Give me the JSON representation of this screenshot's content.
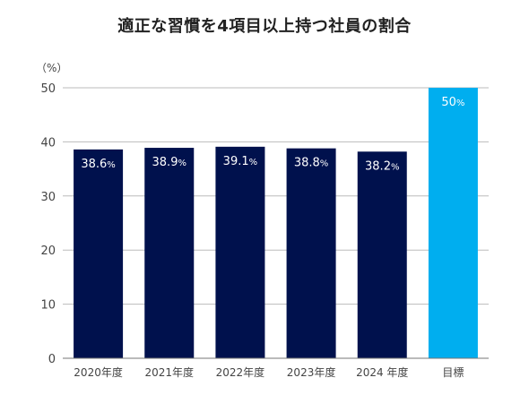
{
  "chart_data": {
    "type": "bar",
    "title": "適正な習慣を4項目以上持つ社員の割合",
    "ylabel": "（%）",
    "categories": [
      "2020年度",
      "2021年度",
      "2022年度",
      "2023年度",
      "2024 年度",
      "目標"
    ],
    "values": [
      38.6,
      38.9,
      39.1,
      38.8,
      38.2,
      50
    ],
    "value_labels": [
      "38.6",
      "38.9",
      "39.1",
      "38.8",
      "38.2",
      "50"
    ],
    "value_unit": "%",
    "ylim": [
      0,
      50
    ],
    "yticks": [
      "0",
      "10",
      "20",
      "30",
      "40",
      "50"
    ],
    "grid": true,
    "colors": {
      "actual": "#00114d",
      "target": "#00aeef",
      "grid": "#bbbbbb",
      "axis": "#777777"
    },
    "highlight_index": 5
  }
}
